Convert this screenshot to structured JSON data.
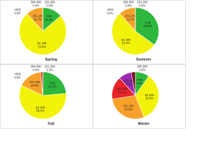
{
  "chart_data": [
    {
      "type": "pie",
      "title": "Spring",
      "categories": [
        "0-50",
        "51-100",
        "101-150",
        "151-200",
        "300-500",
        ">500"
      ],
      "values": [
        13.8,
        74.5,
        11.7,
        0.0,
        0.0,
        0.0
      ],
      "value_labels": [
        "13.8%",
        "74.5%",
        "11.7%",
        "0.0%",
        "0.0%",
        "0.0%"
      ],
      "colors": [
        "#2db83d",
        "#f2f20a",
        "#f7a12a",
        "#e8232a",
        "#9b1c5f",
        "#7a1325"
      ]
    },
    {
      "type": "pie",
      "title": "Summer",
      "categories": [
        "0-50",
        "51-100",
        "101-150",
        "151-200",
        "300-500",
        ">500"
      ],
      "values": [
        35.0,
        53.4,
        11.6,
        0.0,
        0.0,
        0.0
      ],
      "value_labels": [
        "35.0%",
        "53.4%",
        "11.6%",
        "0.0%",
        "0.0%",
        "0.0%"
      ],
      "colors": [
        "#2db83d",
        "#f2f20a",
        "#f7a12a",
        "#e8232a",
        "#9b1c5f",
        "#7a1325"
      ]
    },
    {
      "type": "pie",
      "title": "Fall",
      "categories": [
        "0-50",
        "51-100",
        "101-150",
        "151-200",
        "300-500",
        ">500"
      ],
      "values": [
        23.6,
        58.4,
        16.5,
        1.5,
        0.0,
        0.0
      ],
      "value_labels": [
        "23.6%",
        "58.4%",
        "16.5%",
        "1.5%",
        "0.0%",
        "0.0%"
      ],
      "colors": [
        "#2db83d",
        "#f2f20a",
        "#f7a12a",
        "#e8232a",
        "#9b1c5f",
        "#7a1325"
      ]
    },
    {
      "type": "pie",
      "title": "Winter",
      "categories": [
        "0-50",
        "51-100",
        "101-150",
        "151-200",
        "201-300",
        "300-500"
      ],
      "values": [
        9.6,
        34.3,
        28.6,
        15.7,
        8.9,
        2.9
      ],
      "value_labels": [
        "9.6%",
        "34.3%",
        "28.6%",
        "15.7%",
        "8.9%",
        "2.9%"
      ],
      "colors": [
        "#2db83d",
        "#f2f20a",
        "#f7a12a",
        "#e8232a",
        "#9b2bb0",
        "#7a1325"
      ]
    }
  ]
}
